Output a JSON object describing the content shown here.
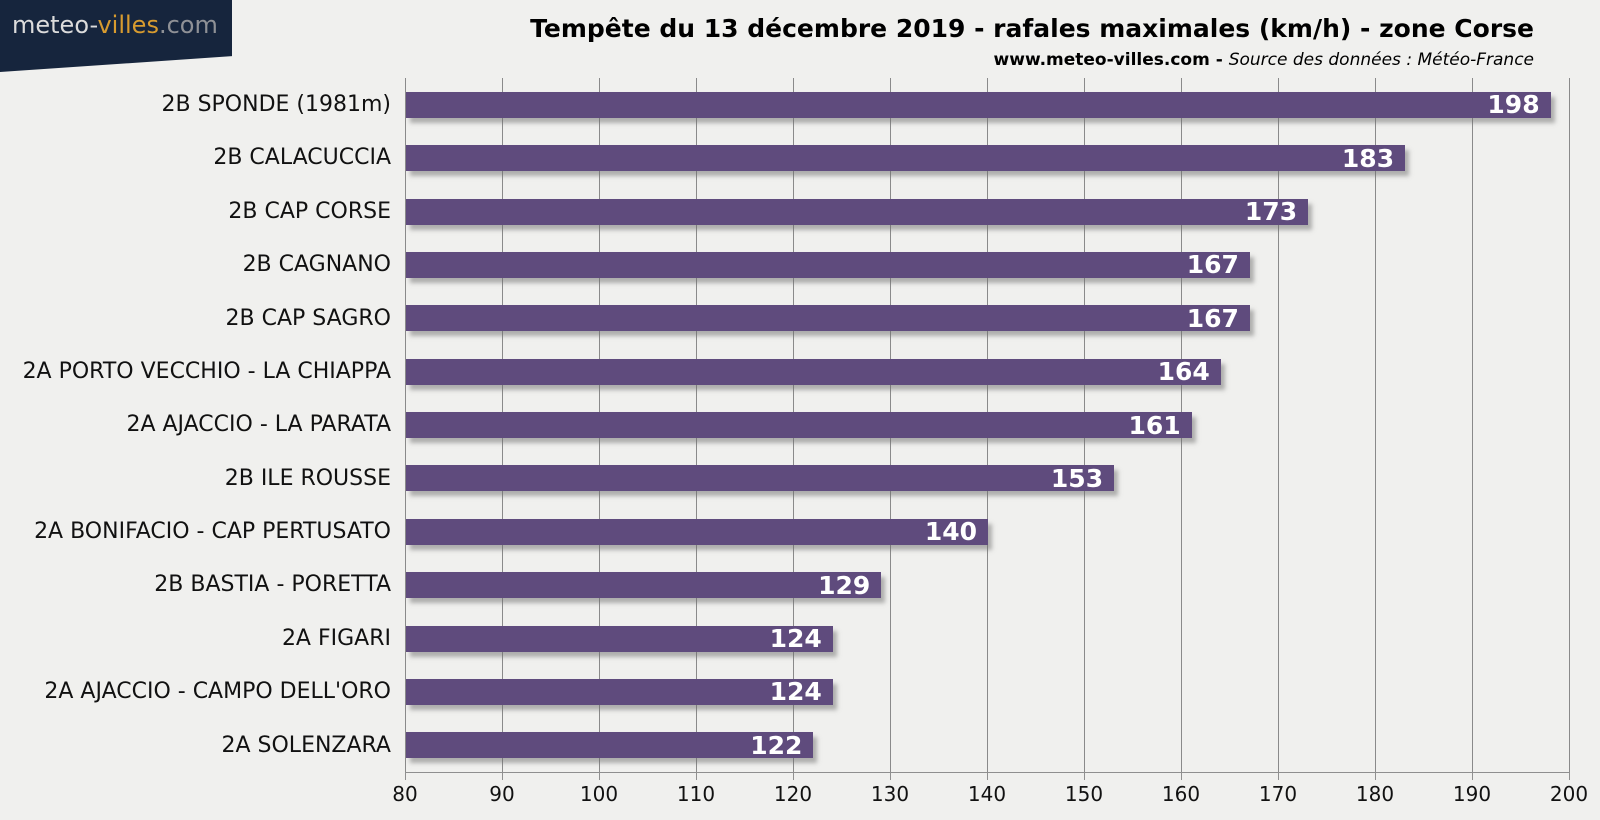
{
  "logo": {
    "part1": "meteo-",
    "part2": "villes",
    "part3": ".com"
  },
  "header": {
    "title": "Tempête du 13 décembre 2019 - rafales maximales (km/h) - zone Corse",
    "subtitle_site": "www.meteo-villes.com",
    "subtitle_sep": " - ",
    "subtitle_source": "Source des données : Météo-France"
  },
  "chart_data": {
    "type": "bar",
    "orientation": "horizontal",
    "title": "Tempête du 13 décembre 2019 - rafales maximales (km/h) - zone Corse",
    "xlabel": "rafales maximales (km/h)",
    "ylabel": "",
    "categories": [
      "2B SPONDE (1981m)",
      "2B CALACUCCIA",
      "2B CAP CORSE",
      "2B CAGNANO",
      "2B CAP SAGRO",
      "2A PORTO VECCHIO - LA CHIAPPA",
      "2A AJACCIO - LA PARATA",
      "2B ILE ROUSSE",
      "2A BONIFACIO - CAP PERTUSATO",
      "2B BASTIA - PORETTA",
      "2A FIGARI",
      "2A AJACCIO - CAMPO DELL'ORO",
      "2A SOLENZARA"
    ],
    "values": [
      198,
      183,
      173,
      167,
      167,
      164,
      161,
      153,
      140,
      129,
      124,
      124,
      122
    ],
    "xlim": [
      80,
      200
    ],
    "x_ticks": [
      80,
      90,
      100,
      110,
      120,
      130,
      140,
      150,
      160,
      170,
      180,
      190,
      200
    ],
    "grid": true,
    "legend": false,
    "bar_color": "#5f4b7d",
    "value_label_color": "#ffffff",
    "gridline_color": "#8a8a8a",
    "background_color": "#f0f0ee"
  }
}
